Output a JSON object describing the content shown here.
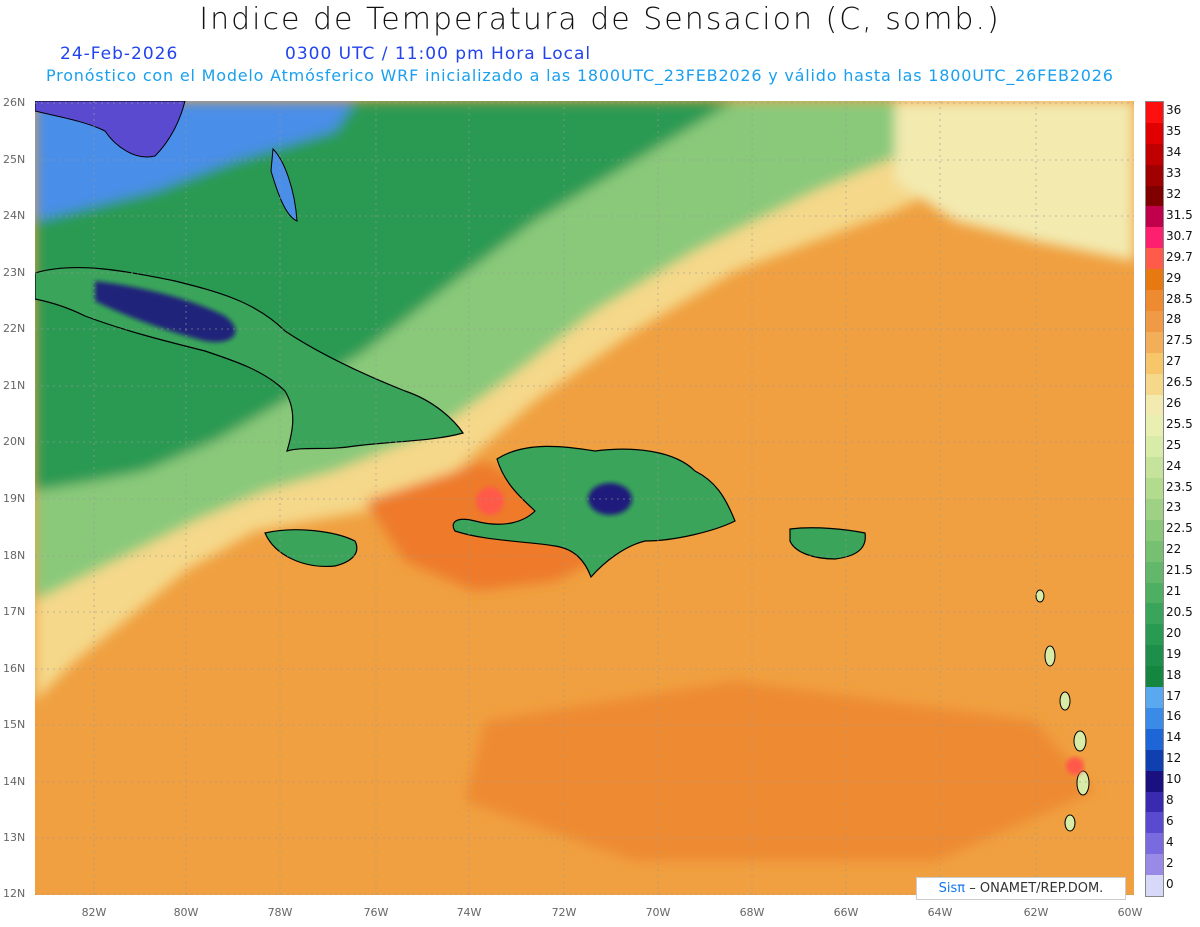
{
  "header": {
    "title": "Indice de Temperatura de Sensacion (C, somb.)",
    "date": "24-Feb-2026",
    "time": "0300 UTC / 11:00 pm Hora Local",
    "model_info": "Pronóstico con el Modelo Atmósferico WRF inicializado a las 1800UTC_23FEB2026 y válido hasta las  1800UTC_26FEB2026"
  },
  "axes": {
    "lat_labels": [
      "26N",
      "25N",
      "24N",
      "23N",
      "22N",
      "21N",
      "20N",
      "19N",
      "18N",
      "17N",
      "16N",
      "15N",
      "14N",
      "13N",
      "12N"
    ],
    "lon_labels": [
      "82W",
      "80W",
      "78W",
      "76W",
      "74W",
      "72W",
      "70W",
      "68W",
      "66W",
      "64W",
      "62W",
      "60W"
    ]
  },
  "colorbar": {
    "labels": [
      "36",
      "35",
      "34",
      "33",
      "32",
      "31.5",
      "30.7",
      "29.7",
      "29",
      "28.5",
      "28",
      "27.5",
      "27",
      "26.5",
      "26",
      "25.5",
      "25",
      "24",
      "23.5",
      "23",
      "22.5",
      "22",
      "21.5",
      "21",
      "20.5",
      "20",
      "19",
      "18",
      "17",
      "16",
      "14",
      "12",
      "10",
      "8",
      "6",
      "4",
      "2",
      "0"
    ],
    "colors": [
      "#ff1010",
      "#e00000",
      "#c00000",
      "#a00000",
      "#800000",
      "#c0004a",
      "#ff1f6f",
      "#ff5a4a",
      "#e67a10",
      "#ee8a30",
      "#f09a45",
      "#f3ae5a",
      "#f7c66a",
      "#f5d88a",
      "#f3eab0",
      "#e8efb0",
      "#d8eca8",
      "#c5e39a",
      "#b2db8e",
      "#9ed183",
      "#8ac97a",
      "#76c072",
      "#62b76a",
      "#4eae62",
      "#3aa45a",
      "#299a52",
      "#1e8f4a",
      "#148640",
      "#5aa8f0",
      "#3a8ae8",
      "#1e66d8",
      "#1040b0",
      "#1a1080",
      "#3a2ab0",
      "#5a4ad0",
      "#7a6ae0",
      "#9a8ae8",
      "#d8d8f8"
    ]
  },
  "credit": {
    "sis": "Sisπ",
    "text": "– ONAMET/REP.DOM."
  },
  "colors": {
    "ocean_warm": "#f0a040",
    "ocean_hot": "#ee7a2a",
    "land_green": "#3aa45a",
    "cool_blue": "#4a8ee8"
  }
}
